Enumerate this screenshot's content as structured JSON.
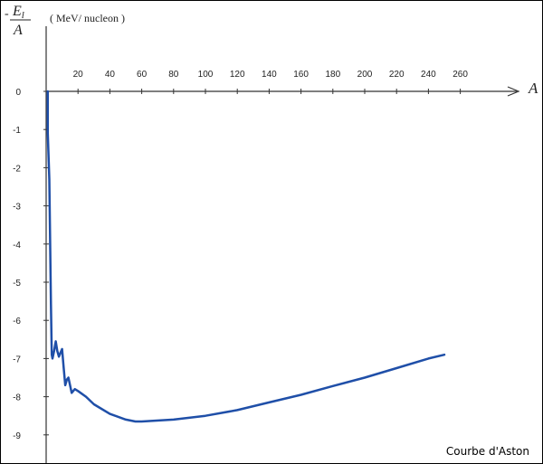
{
  "chart_data": {
    "type": "line",
    "ylabel_prefix": "-",
    "ylabel_numerator": "E",
    "ylabel_numerator_sub": "l",
    "ylabel_denominator": "A",
    "unit_label": "(  MeV/ nucleon  )",
    "xlabel": "A",
    "caption": "Courbe d'Aston",
    "x_ticks": [
      20,
      40,
      60,
      80,
      100,
      120,
      140,
      160,
      180,
      200,
      220,
      240,
      260
    ],
    "y_ticks": [
      0,
      -1,
      -2,
      -3,
      -4,
      -5,
      -6,
      -7,
      -8,
      -9
    ],
    "xlim": [
      0,
      300
    ],
    "ylim": [
      -9.5,
      0
    ],
    "series": [
      {
        "color": "#1f4fa8",
        "points": [
          [
            1,
            0
          ],
          [
            1,
            -1.1
          ],
          [
            2,
            -2.3
          ],
          [
            3,
            -5.6
          ],
          [
            3.5,
            -6.9
          ],
          [
            4,
            -7.0
          ],
          [
            5,
            -6.8
          ],
          [
            6,
            -6.55
          ],
          [
            7,
            -6.8
          ],
          [
            8,
            -6.95
          ],
          [
            9,
            -6.85
          ],
          [
            10,
            -6.75
          ],
          [
            11,
            -7.25
          ],
          [
            12,
            -7.7
          ],
          [
            13,
            -7.55
          ],
          [
            14,
            -7.5
          ],
          [
            15,
            -7.7
          ],
          [
            16,
            -7.9
          ],
          [
            17,
            -7.85
          ],
          [
            18,
            -7.8
          ],
          [
            20,
            -7.85
          ],
          [
            25,
            -8.0
          ],
          [
            30,
            -8.2
          ],
          [
            40,
            -8.45
          ],
          [
            50,
            -8.6
          ],
          [
            56,
            -8.65
          ],
          [
            60,
            -8.65
          ],
          [
            80,
            -8.6
          ],
          [
            100,
            -8.5
          ],
          [
            120,
            -8.35
          ],
          [
            140,
            -8.15
          ],
          [
            160,
            -7.95
          ],
          [
            180,
            -7.72
          ],
          [
            200,
            -7.5
          ],
          [
            220,
            -7.25
          ],
          [
            240,
            -7.0
          ],
          [
            250,
            -6.9
          ]
        ]
      }
    ]
  }
}
